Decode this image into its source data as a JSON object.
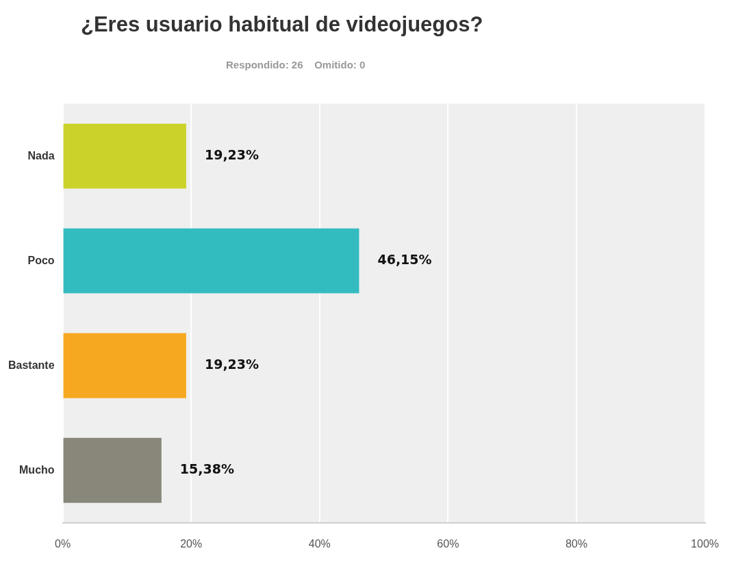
{
  "chart_data": {
    "type": "bar",
    "orientation": "horizontal",
    "title": "¿Eres usuario habitual de videojuegos?",
    "subtitle": "Respondido: 26    Omitido: 0",
    "categories": [
      "Nada",
      "Poco",
      "Bastante",
      "Mucho"
    ],
    "values": [
      19.23,
      46.15,
      19.23,
      15.38
    ],
    "colors": [
      "#cbd32a",
      "#33bcbf",
      "#f6a920",
      "#88877a"
    ],
    "value_labels": [
      "19,23%",
      "46,15%",
      "19,23%",
      "15,38%"
    ],
    "xlim": [
      0,
      100
    ],
    "xticks": [
      {
        "value": 0,
        "label": "0%"
      },
      {
        "value": 20,
        "label": "20%"
      },
      {
        "value": 40,
        "label": "40%"
      },
      {
        "value": 60,
        "label": "60%"
      },
      {
        "value": 80,
        "label": "80%"
      },
      {
        "value": 100,
        "label": "100%"
      }
    ],
    "grid": "x",
    "legend": false
  }
}
